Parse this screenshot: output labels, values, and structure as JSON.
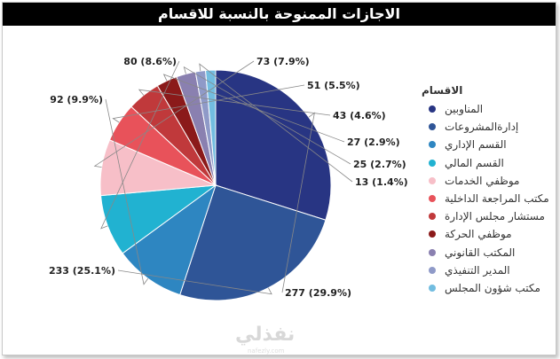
{
  "chart_data": {
    "type": "pie",
    "title": "الاجازات الممنوحة بالنسبة للاقسام",
    "legend_title": "الاقسام",
    "legend_position": "right",
    "categories": [
      "المناوبين",
      "إدارةالمشروعات",
      "القسم الإداري",
      "القسم المالي",
      "موظفي الخدمات",
      "مكتب المراجعة الداخلية",
      "مستشار مجلس الإدارة",
      "موظفي الحركة",
      "المكتب القانوني",
      "المدير التنفيذي",
      "مكتب شؤون المجلس"
    ],
    "values": [
      277,
      233,
      92,
      80,
      73,
      51,
      43,
      27,
      25,
      13,
      13
    ],
    "data_labels": [
      "277 (29.9%)",
      "233 (25.1%)",
      "92 (9.9%)",
      "80 (8.6%)",
      "73 (7.9%)",
      "51 (5.5%)",
      "43 (4.6%)",
      "27 (2.9%)",
      "25 (2.7%)",
      "13 (1.4%)",
      ""
    ],
    "colors": [
      "#283583",
      "#2f5597",
      "#2e86c1",
      "#21b2d1",
      "#f7bfc8",
      "#e8525a",
      "#c0393b",
      "#8b1a1a",
      "#8a80b0",
      "#8f9ac8",
      "#72bde0"
    ]
  },
  "watermark": {
    "main": "نفذلي",
    "sub": "nafezly.com"
  }
}
